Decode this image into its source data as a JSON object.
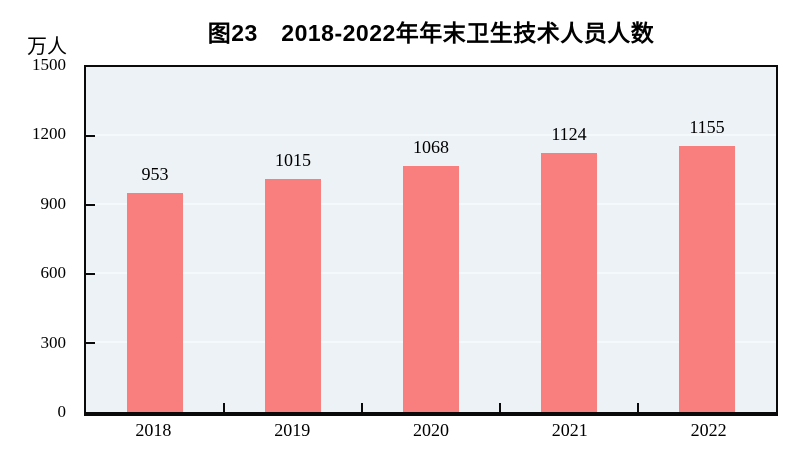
{
  "chart": {
    "title": "图23　2018-2022年年末卫生技术人员人数",
    "unit_label": "万人"
  },
  "chart_data": {
    "type": "bar",
    "title": "图23　2018-2022年年末卫生技术人员人数",
    "categories": [
      "2018",
      "2019",
      "2020",
      "2021",
      "2022"
    ],
    "values": [
      953,
      1015,
      1068,
      1124,
      1155
    ],
    "xlabel": "",
    "ylabel": "万人",
    "ylim": [
      0,
      1500
    ],
    "yticks": [
      0,
      300,
      600,
      900,
      1200,
      1500
    ],
    "grid": true,
    "legend": false,
    "colors": {
      "bar": "#F97F7F",
      "plot_background": "#ECF2F6",
      "gridline": "#F4F9FB",
      "axis": "#0a0a0a",
      "text": "#000000"
    }
  }
}
